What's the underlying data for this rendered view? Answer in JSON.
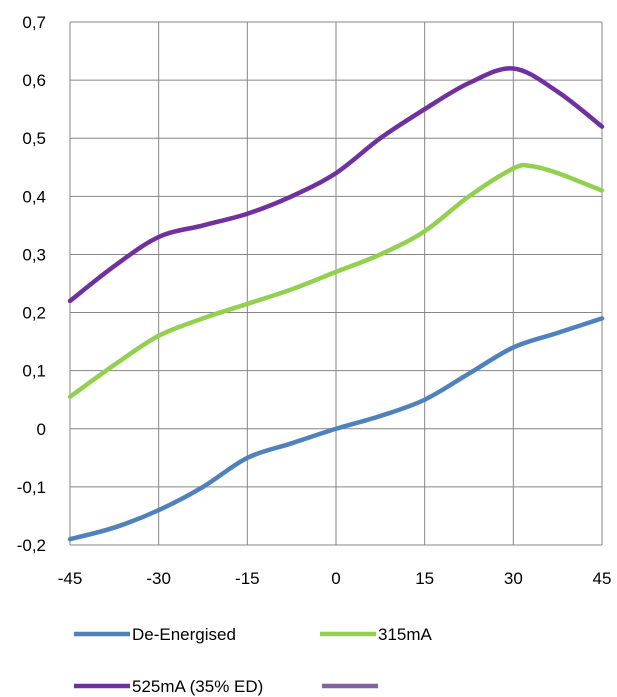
{
  "chart_data": {
    "type": "line",
    "title": "",
    "xlabel": "",
    "ylabel": "",
    "xlim": [
      -45,
      45
    ],
    "ylim": [
      -0.2,
      0.7
    ],
    "x_ticks": [
      -45,
      -30,
      -15,
      0,
      15,
      30,
      45
    ],
    "x_tick_labels": [
      "-45",
      "-30",
      "-15",
      "0",
      "15",
      "30",
      "45"
    ],
    "y_ticks": [
      -0.2,
      -0.1,
      0,
      0.1,
      0.2,
      0.3,
      0.4,
      0.5,
      0.6,
      0.7
    ],
    "y_tick_labels": [
      "-0,2",
      "-0,1",
      "0",
      "0,1",
      "0,2",
      "0,3",
      "0,4",
      "0,5",
      "0,6",
      "0,7"
    ],
    "grid": true,
    "legend_position": "bottom",
    "series": [
      {
        "name": "De-Energised",
        "color": "#4F81BD",
        "x": [
          -45,
          -37.5,
          -30,
          -22.5,
          -15,
          -7.5,
          0,
          7.5,
          15,
          22.5,
          30,
          37.5,
          45
        ],
        "y": [
          -0.19,
          -0.17,
          -0.14,
          -0.1,
          -0.05,
          -0.025,
          0.0,
          0.022,
          0.05,
          0.095,
          0.14,
          0.165,
          0.19
        ]
      },
      {
        "name": "315mA",
        "color": "#92D050",
        "x": [
          -45,
          -37.5,
          -30,
          -22.5,
          -15,
          -7.5,
          0,
          7.5,
          15,
          22.5,
          30,
          33,
          37.5,
          45
        ],
        "y": [
          0.055,
          0.11,
          0.16,
          0.19,
          0.215,
          0.24,
          0.27,
          0.3,
          0.34,
          0.4,
          0.448,
          0.452,
          0.44,
          0.41
        ]
      },
      {
        "name": "525mA (35% ED)",
        "color": "#7030A0",
        "x": [
          -45,
          -37.5,
          -30,
          -22.5,
          -15,
          -7.5,
          0,
          7.5,
          15,
          22.5,
          30,
          37.5,
          45
        ],
        "y": [
          0.22,
          0.28,
          0.33,
          0.35,
          0.37,
          0.4,
          0.44,
          0.5,
          0.55,
          0.595,
          0.62,
          0.58,
          0.52
        ]
      },
      {
        "name": "",
        "color": "#8064A2",
        "x": [],
        "y": []
      }
    ]
  }
}
